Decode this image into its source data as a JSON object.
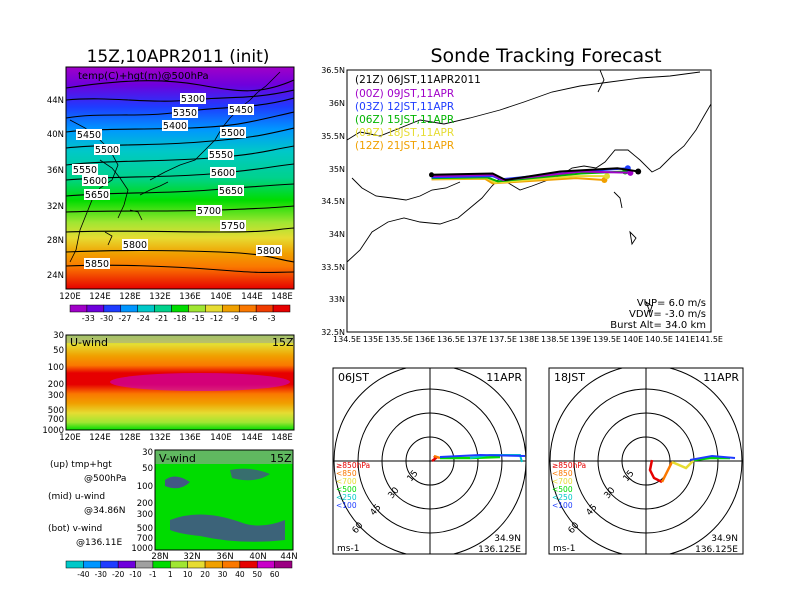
{
  "left_title": "15Z,10APR2011 (init)",
  "right_title": "Sonde Tracking Forecast",
  "panel_500": {
    "label": "temp(C)+hgt(m)@500hPa",
    "contour_labels": [
      "5300",
      "5350",
      "5400",
      "5450",
      "5450",
      "5500",
      "5500",
      "5550",
      "5550",
      "5600",
      "5600",
      "5650",
      "5650",
      "5700",
      "5750",
      "5800",
      "5800",
      "5850"
    ],
    "lon_ticks": [
      "120E",
      "124E",
      "128E",
      "132E",
      "136E",
      "140E",
      "144E",
      "148E"
    ],
    "lat_ticks": [
      "44N",
      "40N",
      "36N",
      "32N",
      "28N",
      "24N"
    ]
  },
  "temp_colorbar": {
    "labels": [
      "-33",
      "-30",
      "-27",
      "-24",
      "-21",
      "-18",
      "-15",
      "-12",
      "-9",
      "-6",
      "-3"
    ],
    "colors": [
      "#a000c8",
      "#6e00dc",
      "#1e3cff",
      "#0096ff",
      "#00c8c8",
      "#00d28c",
      "#00dc00",
      "#a0e632",
      "#e6dc32",
      "#f0a000",
      "#fa7800",
      "#f03c00",
      "#e60000"
    ]
  },
  "panel_u": {
    "label": "U-wind",
    "time": "15Z",
    "y_ticks": [
      "30",
      "50",
      "100",
      "200",
      "300",
      "500",
      "700",
      "1000"
    ],
    "x_ticks": [
      "120E",
      "124E",
      "128E",
      "132E",
      "136E",
      "140E",
      "144E",
      "148E"
    ]
  },
  "panel_v": {
    "label": "V-wind",
    "time": "15Z",
    "y_ticks": [
      "30",
      "50",
      "100",
      "200",
      "300",
      "500",
      "700",
      "1000"
    ],
    "x_ticks": [
      "28N",
      "32N",
      "36N",
      "40N",
      "44N"
    ]
  },
  "side_notes": [
    {
      "a": "(up) tmp+hgt",
      "b": "@500hPa"
    },
    {
      "a": "(mid) u-wind",
      "b": "@34.86N"
    },
    {
      "a": "(bot) v-wind",
      "b": "@136.11E"
    }
  ],
  "wind_colorbar": {
    "labels": [
      "-40",
      "-30",
      "-20",
      "-10",
      "-1",
      "1",
      "10",
      "20",
      "30",
      "40",
      "50",
      "60"
    ],
    "colors": [
      "#00c8c8",
      "#0096ff",
      "#1e3cff",
      "#6e00dc",
      "#a0a0a0",
      "#00dc00",
      "#a0e632",
      "#e6dc32",
      "#f0a000",
      "#fa7800",
      "#e60000",
      "#c800c8",
      "#9b0082"
    ]
  },
  "track_map": {
    "legend": [
      {
        "text": "(21Z)  06JST,11APR2011",
        "color": "#000000"
      },
      {
        "text": "(00Z)  09JST,11APR",
        "color": "#a000c8"
      },
      {
        "text": "(03Z)  12JST,11APR",
        "color": "#1e3cff"
      },
      {
        "text": "(06Z)  15JST,11APR",
        "color": "#00b400"
      },
      {
        "text": "(09Z)  18JST,11APR",
        "color": "#e6dc32"
      },
      {
        "text": "(12Z)  21JST,11APR",
        "color": "#f0a000"
      }
    ],
    "lat_ticks": [
      "36.5N",
      "36N",
      "35.5N",
      "35N",
      "34.5N",
      "34N",
      "33.5N",
      "33N",
      "32.5N"
    ],
    "lon_ticks": [
      "134.5E",
      "135E",
      "135.5E",
      "136E",
      "136.5E",
      "137E",
      "137.5E",
      "138E",
      "138.5E",
      "139E",
      "139.5E",
      "140E",
      "140.5E",
      "141E",
      "141.5E"
    ],
    "info": [
      "VUP=  6.0  m/s",
      "VDW=  -3.0  m/s",
      "Burst Alt=  34.0  km"
    ]
  },
  "hodo_left": {
    "time": "06JST",
    "date": "11APR",
    "rings": [
      "15",
      "30",
      "45",
      "60"
    ],
    "legend": [
      {
        "text": "≥850hPa",
        "color": "#e60000"
      },
      {
        "text": "<850",
        "color": "#fa7800"
      },
      {
        "text": "<700",
        "color": "#e6dc32"
      },
      {
        "text": "<500",
        "color": "#00dc00"
      },
      {
        "text": "<250",
        "color": "#00c8c8"
      },
      {
        "text": "<100",
        "color": "#1e3cff"
      }
    ],
    "unit": "ms-1",
    "lat": "34.9N",
    "lon": "136.125E"
  },
  "hodo_right": {
    "time": "18JST",
    "date": "11APR",
    "rings": [
      "15",
      "30",
      "45",
      "60"
    ],
    "legend": [
      {
        "text": "≥850hPa",
        "color": "#e60000"
      },
      {
        "text": "<850",
        "color": "#fa7800"
      },
      {
        "text": "<700",
        "color": "#e6dc32"
      },
      {
        "text": "<500",
        "color": "#00dc00"
      },
      {
        "text": "<250",
        "color": "#00c8c8"
      },
      {
        "text": "<100",
        "color": "#1e3cff"
      }
    ],
    "unit": "ms-1",
    "lat": "34.9N",
    "lon": "136.125E"
  },
  "chart_data": [
    {
      "type": "heatmap",
      "title": "15Z,10APR2011 (init)",
      "subtitle": "temp(C)+hgt(m)@500hPa",
      "x_range": [
        "120E",
        "150E"
      ],
      "y_range": [
        "22N",
        "48N"
      ],
      "contour_levels": [
        5300,
        5350,
        5400,
        5450,
        5500,
        5550,
        5600,
        5650,
        5700,
        5750,
        5800,
        5850
      ],
      "colorbar": [
        -33,
        -30,
        -27,
        -24,
        -21,
        -18,
        -15,
        -12,
        -9,
        -6,
        -3
      ]
    },
    {
      "type": "heatmap",
      "title": "U-wind",
      "y_levels_hPa": [
        30,
        50,
        100,
        200,
        300,
        500,
        700,
        1000
      ],
      "x_range": [
        "120E",
        "150E"
      ],
      "colorbar": [
        -40,
        -30,
        -20,
        -10,
        -1,
        1,
        10,
        20,
        30,
        40,
        50,
        60
      ]
    },
    {
      "type": "heatmap",
      "title": "V-wind",
      "y_levels_hPa": [
        30,
        50,
        100,
        200,
        300,
        500,
        700,
        1000
      ],
      "x_range": [
        "28N",
        "44N"
      ],
      "colorbar": [
        -40,
        -30,
        -20,
        -10,
        -1,
        1,
        10,
        20,
        30,
        40,
        50,
        60
      ]
    },
    {
      "type": "line",
      "title": "Sonde Tracking Forecast",
      "xlim": [
        134.5,
        141.5
      ],
      "ylim": [
        32.5,
        36.5
      ],
      "launch": {
        "lon": 136.125,
        "lat": 34.9
      },
      "series": [
        {
          "name": "(21Z) 06JST,11APR2011",
          "color": "#000000",
          "points": [
            [
              136.125,
              34.9
            ],
            [
              137.3,
              34.92
            ],
            [
              137.55,
              34.82
            ],
            [
              138.6,
              34.95
            ],
            [
              139.7,
              35.0
            ],
            [
              140.1,
              34.95
            ]
          ]
        },
        {
          "name": "(00Z) 09JST,11APR",
          "color": "#a000c8",
          "points": [
            [
              136.125,
              34.88
            ],
            [
              137.3,
              34.9
            ],
            [
              137.5,
              34.82
            ],
            [
              139.0,
              34.95
            ],
            [
              139.95,
              34.93
            ]
          ]
        },
        {
          "name": "(03Z) 12JST,11APR",
          "color": "#1e3cff",
          "points": [
            [
              136.125,
              34.86
            ],
            [
              137.3,
              34.88
            ],
            [
              137.45,
              34.83
            ],
            [
              139.0,
              34.95
            ],
            [
              139.9,
              35.0
            ]
          ]
        },
        {
          "name": "(06Z) 15JST,11APR",
          "color": "#00b400",
          "points": [
            [
              136.125,
              34.85
            ],
            [
              137.2,
              34.86
            ],
            [
              137.4,
              34.8
            ],
            [
              139.0,
              34.92
            ],
            [
              139.85,
              34.95
            ]
          ]
        },
        {
          "name": "(09Z) 18JST,11APR",
          "color": "#e6dc32",
          "points": [
            [
              136.125,
              34.84
            ],
            [
              137.2,
              34.85
            ],
            [
              137.35,
              34.78
            ],
            [
              138.9,
              34.88
            ],
            [
              139.5,
              34.88
            ]
          ]
        },
        {
          "name": "(12Z) 21JST,11APR",
          "color": "#f0a000",
          "points": [
            [
              136.125,
              34.83
            ],
            [
              137.15,
              34.84
            ],
            [
              137.3,
              34.77
            ],
            [
              138.9,
              34.85
            ],
            [
              139.45,
              34.82
            ]
          ]
        }
      ],
      "vup_ms": 6.0,
      "vdw_ms": -3.0,
      "burst_alt_km": 34.0
    }
  ]
}
